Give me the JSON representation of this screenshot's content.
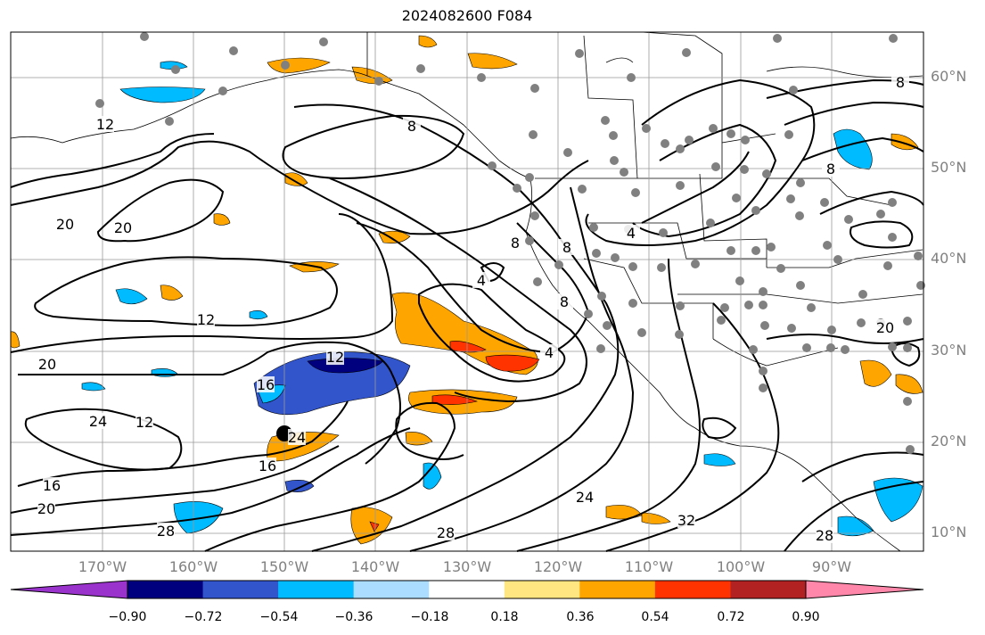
{
  "title": "2024082600 F084",
  "map": {
    "lat_labels": [
      "60°N",
      "50°N",
      "40°N",
      "30°N",
      "20°N",
      "10°N"
    ],
    "lon_labels": [
      "170°W",
      "160°W",
      "150°W",
      "140°W",
      "130°W",
      "120°W",
      "110°W",
      "100°W",
      "90°W"
    ],
    "contour_labels": [
      "12",
      "8",
      "8",
      "20",
      "20",
      "12",
      "8",
      "8",
      "4",
      "4",
      "8",
      "4",
      "20",
      "12",
      "16",
      "12",
      "24",
      "24",
      "16",
      "16",
      "20",
      "28",
      "28",
      "24",
      "32",
      "28",
      "8",
      "20"
    ],
    "station_marker_color": "#808080",
    "highlight_point": "black-dot"
  },
  "colorbar": {
    "tick_labels": [
      "−0.90",
      "−0.72",
      "−0.54",
      "−0.36",
      "−0.18",
      "0.18",
      "0.36",
      "0.54",
      "0.72",
      "0.90"
    ],
    "colors": [
      "#9933cc",
      "#00007f",
      "#3355cc",
      "#00bbff",
      "#aaddff",
      "#ffffff",
      "#ffe680",
      "#ffa500",
      "#ff3300",
      "#b22222",
      "#ff88aa"
    ]
  }
}
